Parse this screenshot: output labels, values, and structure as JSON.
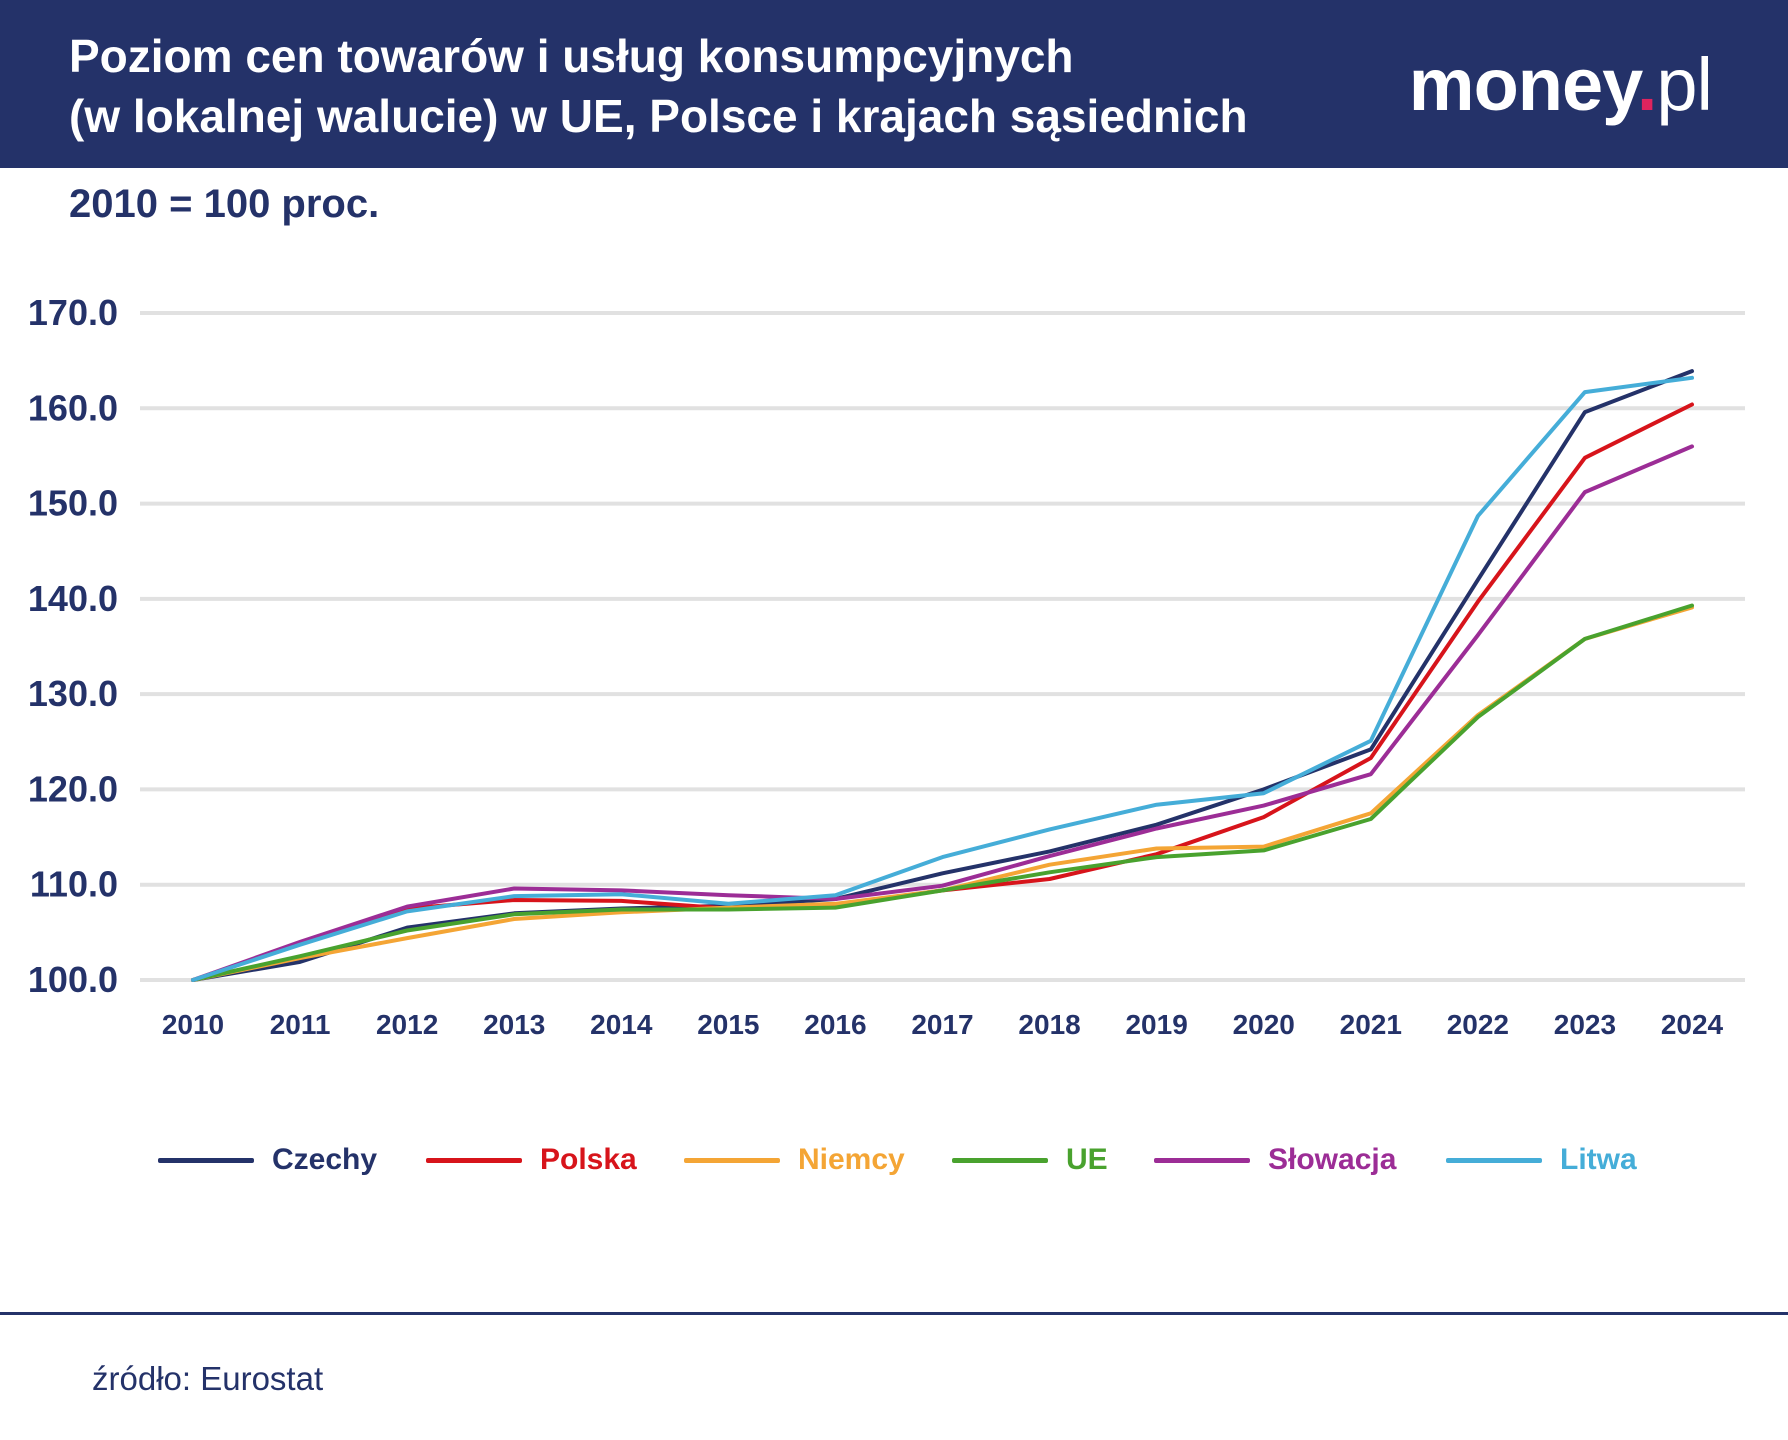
{
  "header": {
    "title_line1": "Poziom cen towarów i usług konsumpcyjnych",
    "title_line2": "(w lokalnej walucie) w UE, Polsce i krajach sąsiednich",
    "logo_main": "money",
    "logo_dot": ".",
    "logo_suffix": "pl"
  },
  "subtitle": "2010 = 100 proc.",
  "source": "źródło: Eurostat",
  "colors": {
    "header_bg": "#243269",
    "grid": "#e1e1e1",
    "axis_text": "#243269"
  },
  "chart_data": {
    "type": "line",
    "title": "Poziom cen towarów i usług konsumpcyjnych (w lokalnej walucie) w UE, Polsce i krajach sąsiednich",
    "subtitle": "2010 = 100 proc.",
    "xlabel": "",
    "ylabel": "",
    "ylim": [
      100,
      170
    ],
    "y_ticks": [
      "100.0",
      "110.0",
      "120.0",
      "130.0",
      "140.0",
      "150.0",
      "160.0",
      "170.0"
    ],
    "x": [
      "2010",
      "2011",
      "2012",
      "2013",
      "2014",
      "2015",
      "2016",
      "2017",
      "2018",
      "2019",
      "2020",
      "2021",
      "2022",
      "2023",
      "2024"
    ],
    "grid": true,
    "legend_position": "bottom",
    "series": [
      {
        "name": "Czechy",
        "color": "#243269",
        "values": [
          100.0,
          101.9,
          105.5,
          107.0,
          107.5,
          107.8,
          108.5,
          111.2,
          113.5,
          116.3,
          120.0,
          124.2,
          142.0,
          159.6,
          163.9
        ]
      },
      {
        "name": "Polska",
        "color": "#d7141b",
        "values": [
          100.0,
          103.8,
          107.5,
          108.4,
          108.3,
          107.5,
          107.9,
          109.4,
          110.6,
          113.2,
          117.1,
          123.3,
          139.7,
          154.8,
          160.4
        ]
      },
      {
        "name": "Niemcy",
        "color": "#f4a535",
        "values": [
          100.0,
          102.3,
          104.4,
          106.4,
          107.1,
          107.6,
          108.0,
          109.4,
          112.1,
          113.8,
          114.0,
          117.5,
          127.8,
          135.8,
          139.1
        ]
      },
      {
        "name": "UE",
        "color": "#49a22e",
        "values": [
          100.0,
          102.5,
          105.2,
          106.9,
          107.4,
          107.4,
          107.6,
          109.4,
          111.3,
          112.9,
          113.6,
          116.9,
          127.6,
          135.8,
          139.3
        ]
      },
      {
        "name": "Słowacja",
        "color": "#9c2d96",
        "values": [
          100.0,
          104.0,
          107.7,
          109.6,
          109.4,
          108.9,
          108.5,
          109.9,
          113.0,
          115.9,
          118.3,
          121.6,
          136.2,
          151.2,
          156.0
        ]
      },
      {
        "name": "Litwa",
        "color": "#45add8",
        "values": [
          100.0,
          103.7,
          107.2,
          108.8,
          109.0,
          108.0,
          108.9,
          112.9,
          115.8,
          118.4,
          119.6,
          125.1,
          148.7,
          161.7,
          163.2
        ]
      }
    ]
  }
}
